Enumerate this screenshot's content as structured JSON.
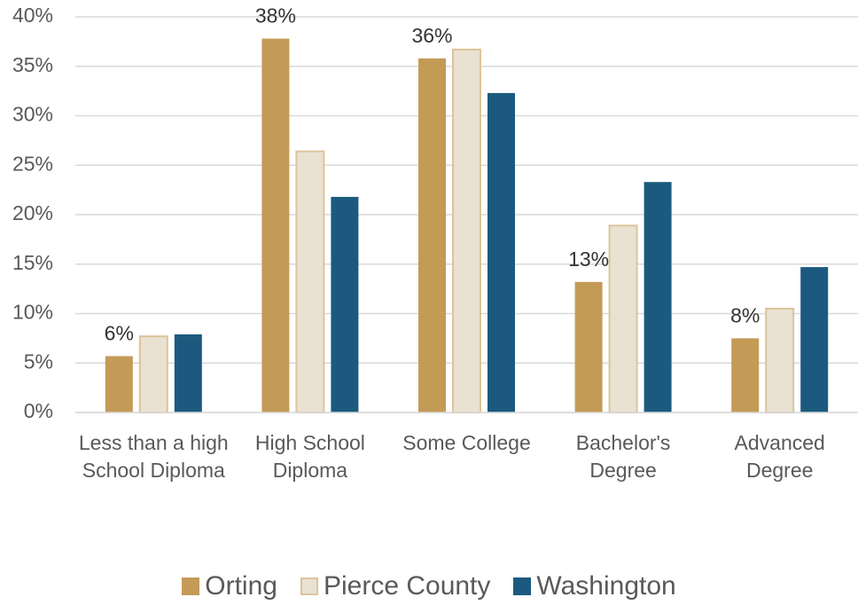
{
  "chart_data": {
    "type": "bar",
    "categories": [
      "Less than a high School Diploma",
      "High School Diploma",
      "Some College",
      "Bachelor's Degree",
      "Advanced Degree"
    ],
    "series": [
      {
        "name": "Orting",
        "color": "#c49a57",
        "values": [
          5.7,
          37.8,
          35.8,
          13.2,
          7.5
        ],
        "value_labels": [
          "6%",
          "38%",
          "36%",
          "13%",
          "8%"
        ]
      },
      {
        "name": "Pierce County",
        "color": "#e9e1d2",
        "edgecolor": "#dcc49a",
        "values": [
          7.7,
          26.4,
          36.7,
          18.9,
          10.5
        ]
      },
      {
        "name": "Washington",
        "color": "#1b5a7e",
        "values": [
          7.9,
          21.8,
          32.3,
          23.3,
          14.7
        ]
      }
    ],
    "ylim": [
      0,
      40
    ],
    "yticks": [
      {
        "value": 0,
        "label": "0%"
      },
      {
        "value": 5,
        "label": "5%"
      },
      {
        "value": 10,
        "label": "10%"
      },
      {
        "value": 15,
        "label": "15%"
      },
      {
        "value": 20,
        "label": "20%"
      },
      {
        "value": 25,
        "label": "25%"
      },
      {
        "value": 30,
        "label": "30%"
      },
      {
        "value": 35,
        "label": "35%"
      },
      {
        "value": 40,
        "label": "40%"
      }
    ],
    "grid": true,
    "legend": "bottom"
  }
}
